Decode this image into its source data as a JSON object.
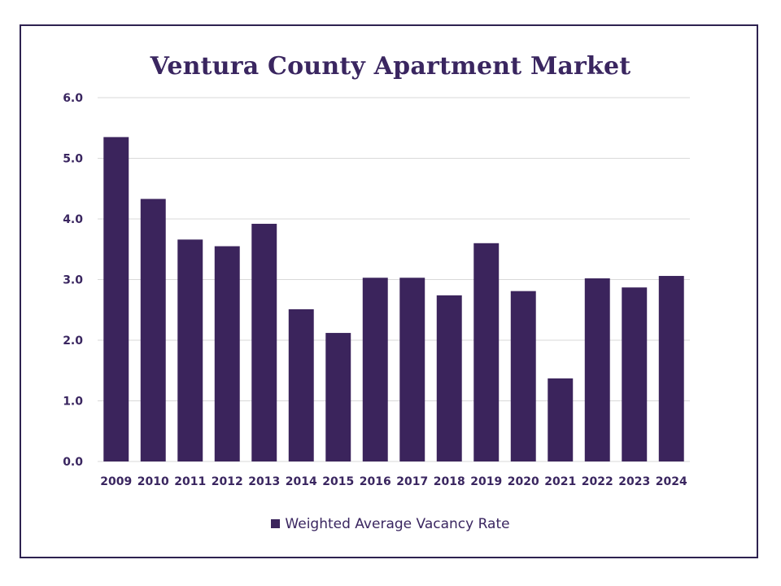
{
  "chart_data": {
    "type": "bar",
    "title": "Ventura County Apartment Market",
    "categories": [
      "2009",
      "2010",
      "2011",
      "2012",
      "2013",
      "2014",
      "2015",
      "2016",
      "2017",
      "2018",
      "2019",
      "2020",
      "2021",
      "2022",
      "2023",
      "2024"
    ],
    "series": [
      {
        "name": "Weighted Average Vacancy Rate",
        "values": [
          5.35,
          4.33,
          3.66,
          3.55,
          3.92,
          2.51,
          2.12,
          3.03,
          3.03,
          2.74,
          3.6,
          2.81,
          1.37,
          3.02,
          2.87,
          3.06
        ],
        "color": "#3b245c"
      }
    ],
    "ylim": [
      0,
      6
    ],
    "yticks": [
      "0.0",
      "1.0",
      "2.0",
      "3.0",
      "4.0",
      "5.0",
      "6.0"
    ],
    "grid": true,
    "legend_position": "bottom",
    "xlabel": "",
    "ylabel": ""
  },
  "colors": {
    "bar": "#3b245c",
    "text": "#3a2660",
    "grid": "#d9d9d9",
    "border": "#2e2250"
  }
}
